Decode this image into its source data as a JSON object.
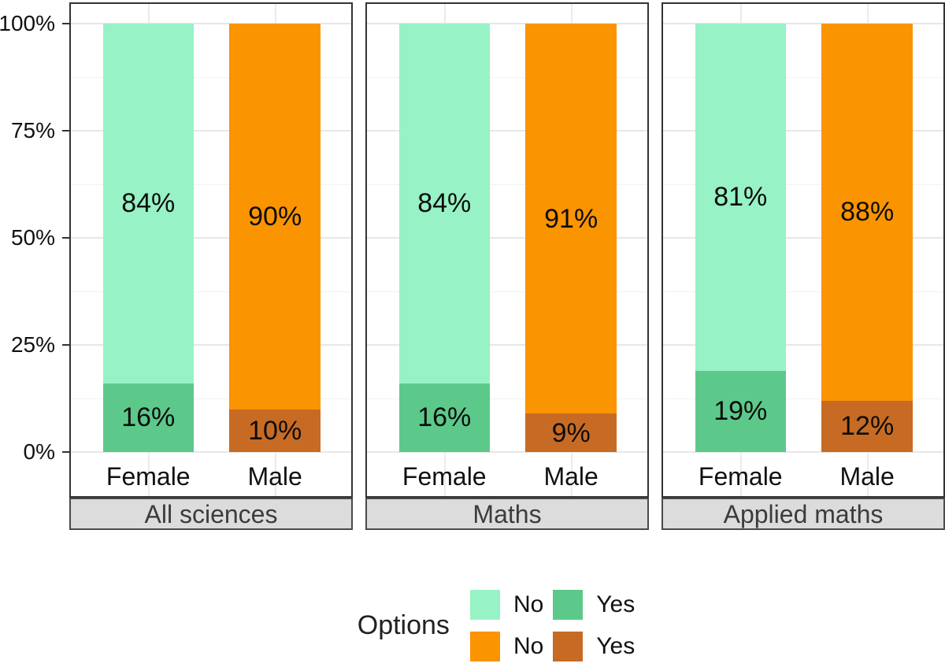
{
  "chart_data": {
    "type": "bar",
    "stacked": "percent",
    "title": "",
    "xlabel": "",
    "ylabel": "",
    "ylim": [
      0,
      100
    ],
    "grid": "major and minor horizontal, vertical at category centers",
    "legend_position": "bottom",
    "y_axis": {
      "ticks": [
        {
          "label": "0%",
          "value": 0
        },
        {
          "label": "25%",
          "value": 25
        },
        {
          "label": "50%",
          "value": 50
        },
        {
          "label": "75%",
          "value": 75
        },
        {
          "label": "100%",
          "value": 100
        }
      ]
    },
    "x_categories": [
      "Female",
      "Male"
    ],
    "colors": {
      "female_no": "#97f2c5",
      "female_yes": "#5cc98b",
      "male_no": "#fa9400",
      "male_yes": "#c76b24"
    },
    "panels": [
      {
        "strip": "All sciences",
        "bars": [
          {
            "category": "Female",
            "group": "female",
            "segments": [
              {
                "option": "no",
                "value": 84,
                "label": "84%"
              },
              {
                "option": "yes",
                "value": 16,
                "label": "16%"
              }
            ]
          },
          {
            "category": "Male",
            "group": "male",
            "segments": [
              {
                "option": "no",
                "value": 90,
                "label": "90%"
              },
              {
                "option": "yes",
                "value": 10,
                "label": "10%"
              }
            ]
          }
        ]
      },
      {
        "strip": "Maths",
        "bars": [
          {
            "category": "Female",
            "group": "female",
            "segments": [
              {
                "option": "no",
                "value": 84,
                "label": "84%"
              },
              {
                "option": "yes",
                "value": 16,
                "label": "16%"
              }
            ]
          },
          {
            "category": "Male",
            "group": "male",
            "segments": [
              {
                "option": "no",
                "value": 91,
                "label": "91%"
              },
              {
                "option": "yes",
                "value": 9,
                "label": "9%"
              }
            ]
          }
        ]
      },
      {
        "strip": "Applied maths",
        "bars": [
          {
            "category": "Female",
            "group": "female",
            "segments": [
              {
                "option": "no",
                "value": 81,
                "label": "81%"
              },
              {
                "option": "yes",
                "value": 19,
                "label": "19%"
              }
            ]
          },
          {
            "category": "Male",
            "group": "male",
            "segments": [
              {
                "option": "no",
                "value": 88,
                "label": "88%"
              },
              {
                "option": "yes",
                "value": 12,
                "label": "12%"
              }
            ]
          }
        ]
      }
    ],
    "legend": {
      "title": "Options",
      "entries": [
        {
          "label": "No",
          "color_key": "female_no"
        },
        {
          "label": "Yes",
          "color_key": "female_yes"
        },
        {
          "label": "No",
          "color_key": "male_no"
        },
        {
          "label": "Yes",
          "color_key": "male_yes"
        }
      ]
    }
  }
}
